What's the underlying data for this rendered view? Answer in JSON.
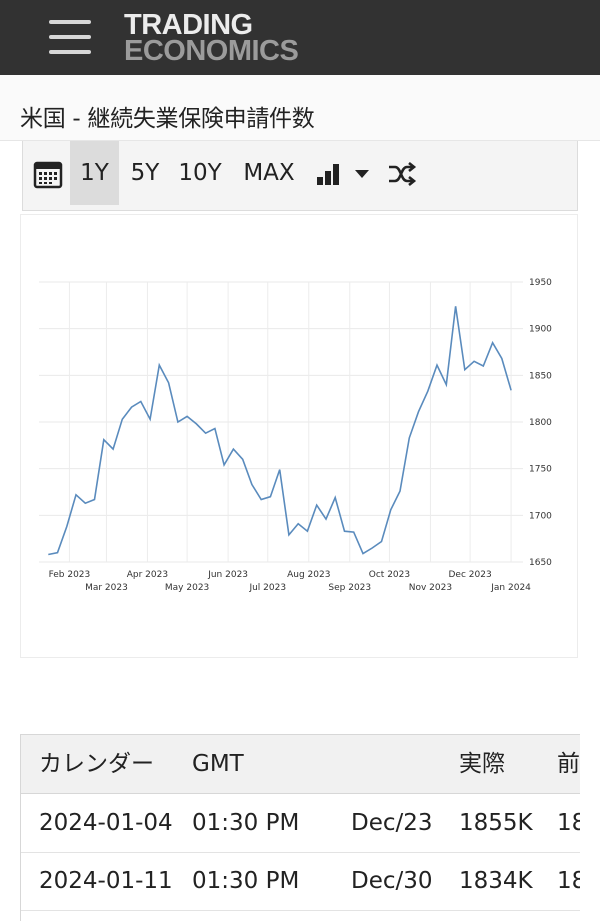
{
  "header": {
    "menu_icon": "hamburger-menu-icon",
    "logo_line1": "TRADING",
    "logo_line2": "ECONOMICS",
    "bg_color": "#323232"
  },
  "page_title": "米国 - 継続失業保険申請件数",
  "toolbar": {
    "calendar_icon": "calendar-icon",
    "ranges": [
      "1Y",
      "5Y",
      "10Y",
      "MAX"
    ],
    "active_range": "1Y",
    "chart_type_icon": "bar-chart-icon",
    "dropdown_icon": "caret-down-icon",
    "compare_icon": "shuffle-icon"
  },
  "chart_data": {
    "type": "line",
    "title": "",
    "xlabel": "",
    "ylabel": "",
    "ylim": [
      1650,
      1950
    ],
    "yticks": [
      1650,
      1700,
      1750,
      1800,
      1850,
      1900,
      1950
    ],
    "xlim": [
      "2023-01-09",
      "2024-01-10"
    ],
    "xticks_top": [
      "Feb 2023",
      "Apr 2023",
      "Jun 2023",
      "Aug 2023",
      "Oct 2023",
      "Dec 2023"
    ],
    "xticks_bottom": [
      "Mar 2023",
      "May 2023",
      "Jul 2023",
      "Sep 2023",
      "Nov 2023",
      "Jan 2024"
    ],
    "grid": true,
    "line_color": "#5a8bbd",
    "series": [
      {
        "x": [
          "2023-01-16",
          "2023-01-23",
          "2023-01-30",
          "2023-02-06",
          "2023-02-13",
          "2023-02-20",
          "2023-02-27",
          "2023-03-06",
          "2023-03-13",
          "2023-03-20",
          "2023-03-27",
          "2023-04-03",
          "2023-04-10",
          "2023-04-17",
          "2023-04-24",
          "2023-05-01",
          "2023-05-08",
          "2023-05-15",
          "2023-05-22",
          "2023-05-29",
          "2023-06-05",
          "2023-06-12",
          "2023-06-19",
          "2023-06-26",
          "2023-07-03",
          "2023-07-10",
          "2023-07-17",
          "2023-07-24",
          "2023-07-31",
          "2023-08-07",
          "2023-08-14",
          "2023-08-21",
          "2023-08-28",
          "2023-09-04",
          "2023-09-11",
          "2023-09-18",
          "2023-09-25",
          "2023-10-02",
          "2023-10-09",
          "2023-10-16",
          "2023-10-23",
          "2023-10-30",
          "2023-11-06",
          "2023-11-13",
          "2023-11-20",
          "2023-11-27",
          "2023-12-04",
          "2023-12-11",
          "2023-12-18",
          "2023-12-25",
          "2024-01-01"
        ],
        "values": [
          1658,
          1660,
          1688,
          1722,
          1713,
          1717,
          1781,
          1771,
          1803,
          1816,
          1822,
          1803,
          1861,
          1842,
          1800,
          1806,
          1798,
          1788,
          1793,
          1754,
          1771,
          1760,
          1733,
          1717,
          1720,
          1749,
          1679,
          1691,
          1683,
          1711,
          1696,
          1719,
          1683,
          1682,
          1659,
          1665,
          1672,
          1706,
          1726,
          1783,
          1811,
          1833,
          1861,
          1840,
          1924,
          1856,
          1865,
          1860,
          1885,
          1868,
          1834
        ]
      }
    ]
  },
  "calendar_table": {
    "headers": [
      "カレンダー",
      "GMT",
      "",
      "実際",
      "前"
    ],
    "rows": [
      [
        "2024-01-04",
        "01:30 PM",
        "Dec/23",
        "1855K",
        "18"
      ],
      [
        "2024-01-11",
        "01:30 PM",
        "Dec/30",
        "1834K",
        "18"
      ]
    ]
  }
}
